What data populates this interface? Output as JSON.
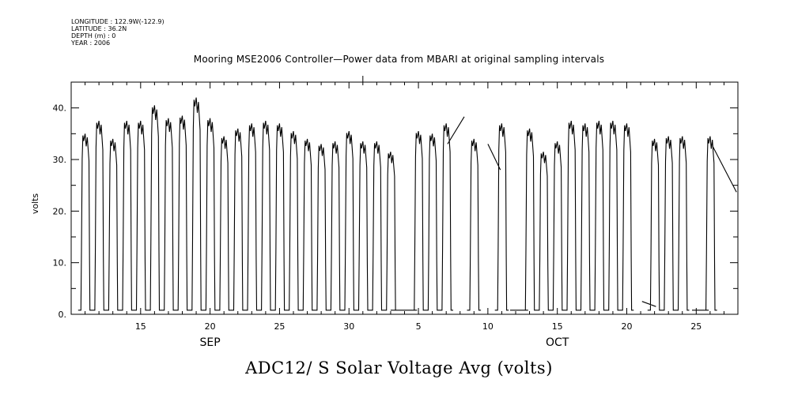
{
  "meta": {
    "longitude": "LONGITUDE : 122.9W(-122.9)",
    "latitude": "LATITUDE : 36.2N",
    "depth": "DEPTH (m) : 0",
    "year": "YEAR : 2006"
  },
  "chart_data": {
    "type": "line",
    "title": "Mooring MSE2006 Controller—Power data from MBARI at original sampling intervals",
    "xlabel": "",
    "ylabel": "volts",
    "bottom_label": "ADC12/ S Solar Voltage Avg (volts)",
    "xlim": [
      "2006-09-10",
      "2006-10-28"
    ],
    "ylim": [
      0,
      45
    ],
    "yticks": [
      0,
      10,
      20,
      30,
      40
    ],
    "ytick_labels": [
      "0.",
      "10.",
      "20.",
      "30.",
      "40."
    ],
    "xticks": [
      {
        "date": "2006-09-15",
        "label": "15"
      },
      {
        "date": "2006-09-20",
        "label": "20"
      },
      {
        "date": "2006-09-25",
        "label": "25"
      },
      {
        "date": "2006-09-30",
        "label": "30"
      },
      {
        "date": "2006-10-05",
        "label": "5"
      },
      {
        "date": "2006-10-10",
        "label": "10"
      },
      {
        "date": "2006-10-15",
        "label": "15"
      },
      {
        "date": "2006-10-20",
        "label": "20"
      },
      {
        "date": "2006-10-25",
        "label": "25"
      }
    ],
    "month_labels": [
      {
        "date": "2006-09-20",
        "label": "SEP"
      },
      {
        "date": "2006-10-15",
        "label": "OCT"
      }
    ],
    "series": [
      {
        "line_color": "#000000",
        "daily_peaks": [
          {
            "date": "2006-09-11",
            "peak": 35.0
          },
          {
            "date": "2006-09-12",
            "peak": 37.5
          },
          {
            "date": "2006-09-13",
            "peak": 34.0
          },
          {
            "date": "2006-09-14",
            "peak": 37.5
          },
          {
            "date": "2006-09-15",
            "peak": 37.5
          },
          {
            "date": "2006-09-16",
            "peak": 40.5
          },
          {
            "date": "2006-09-17",
            "peak": 38.0
          },
          {
            "date": "2006-09-18",
            "peak": 38.5
          },
          {
            "date": "2006-09-19",
            "peak": 42.0
          },
          {
            "date": "2006-09-20",
            "peak": 38.0
          },
          {
            "date": "2006-09-21",
            "peak": 34.5
          },
          {
            "date": "2006-09-22",
            "peak": 36.0
          },
          {
            "date": "2006-09-23",
            "peak": 37.0
          },
          {
            "date": "2006-09-24",
            "peak": 37.5
          },
          {
            "date": "2006-09-25",
            "peak": 37.0
          },
          {
            "date": "2006-09-26",
            "peak": 35.5
          },
          {
            "date": "2006-09-27",
            "peak": 34.0
          },
          {
            "date": "2006-09-28",
            "peak": 33.0
          },
          {
            "date": "2006-09-29",
            "peak": 33.5
          },
          {
            "date": "2006-09-30",
            "peak": 35.5
          },
          {
            "date": "2006-10-01",
            "peak": 33.5
          },
          {
            "date": "2006-10-02",
            "peak": 33.5
          },
          {
            "date": "2006-10-03",
            "peak": 31.5
          },
          {
            "date": "2006-10-05",
            "peak": 35.5
          },
          {
            "date": "2006-10-06",
            "peak": 35.0
          },
          {
            "date": "2006-10-07",
            "peak": 37.0
          },
          {
            "date": "2006-10-09",
            "peak": 34.0
          },
          {
            "date": "2006-10-11",
            "peak": 37.0
          },
          {
            "date": "2006-10-13",
            "peak": 36.0
          },
          {
            "date": "2006-10-14",
            "peak": 31.5
          },
          {
            "date": "2006-10-15",
            "peak": 33.5
          },
          {
            "date": "2006-10-16",
            "peak": 37.5
          },
          {
            "date": "2006-10-17",
            "peak": 37.0
          },
          {
            "date": "2006-10-18",
            "peak": 37.5
          },
          {
            "date": "2006-10-19",
            "peak": 37.5
          },
          {
            "date": "2006-10-20",
            "peak": 37.0
          },
          {
            "date": "2006-10-22",
            "peak": 34.0
          },
          {
            "date": "2006-10-23",
            "peak": 34.5
          },
          {
            "date": "2006-10-24",
            "peak": 34.5
          },
          {
            "date": "2006-10-26",
            "peak": 34.5
          }
        ],
        "night_value": 0.8,
        "gap_segments": [
          {
            "from": [
              "2006-10-03",
              0.8
            ],
            "to": [
              "2006-10-04.9",
              0.8
            ]
          },
          {
            "from": [
              "2006-10-07.1",
              33.0
            ],
            "to": [
              "2006-10-08.3",
              38.3
            ]
          },
          {
            "from": [
              "2006-10-10",
              33.0
            ],
            "to": [
              "2006-10-10.9",
              28.0
            ]
          },
          {
            "from": [
              "2006-10-11.6",
              0.8
            ],
            "to": [
              "2006-10-12.9",
              0.8
            ]
          },
          {
            "from": [
              "2006-10-21.1",
              2.5
            ],
            "to": [
              "2006-10-22.1",
              1.5
            ]
          },
          {
            "from": [
              "2006-10-24.7",
              0.8
            ],
            "to": [
              "2006-10-25.9",
              0.8
            ]
          },
          {
            "from": [
              "2006-10-26.2",
              32.5
            ],
            "to": [
              "2006-10-27.9",
              23.7
            ]
          }
        ]
      }
    ],
    "grid": false
  }
}
